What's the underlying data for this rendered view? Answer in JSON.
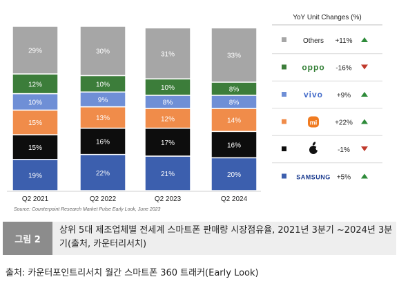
{
  "chart_data": {
    "type": "bar",
    "stacked": true,
    "percent_labels": true,
    "categories": [
      "Q2 2021",
      "Q2 2022",
      "Q2 2023",
      "Q2 2024"
    ],
    "series": [
      {
        "name": "SAMSUNG",
        "color": "#3c5fae",
        "label_color": "#ffffff",
        "values": [
          19,
          22,
          21,
          20
        ]
      },
      {
        "name": "Apple",
        "color": "#0d0d0d",
        "label_color": "#ffffff",
        "values": [
          15,
          16,
          17,
          16
        ]
      },
      {
        "name": "Xiaomi",
        "color": "#f08c4a",
        "label_color": "#ffffff",
        "values": [
          15,
          13,
          12,
          14
        ]
      },
      {
        "name": "vivo",
        "color": "#6f8fd6",
        "label_color": "#ffffff",
        "values": [
          10,
          9,
          8,
          8
        ]
      },
      {
        "name": "oppo",
        "color": "#3c7d3a",
        "label_color": "#ffffff",
        "values": [
          12,
          10,
          10,
          8
        ]
      },
      {
        "name": "Others",
        "color": "#a6a6a6",
        "label_color": "#ffffff",
        "values": [
          29,
          30,
          31,
          33
        ]
      }
    ],
    "ylim": [
      0,
      100
    ],
    "footnote": "Source: Counterpoint Research Market Pulse Early Look, June 2023",
    "legend": {
      "title": "YoY Unit Changes (%)",
      "placement": "right",
      "entries": [
        {
          "label": "Others",
          "change": "+11%",
          "direction": "up",
          "color": "#a6a6a6",
          "logo": "text"
        },
        {
          "label": "oppo",
          "change": "-16%",
          "direction": "down",
          "color": "#3c7d3a",
          "logo": "oppo-logo"
        },
        {
          "label": "vivo",
          "change": "+9%",
          "direction": "up",
          "color": "#6f8fd6",
          "logo": "vivo-logo"
        },
        {
          "label": "mi",
          "change": "+22%",
          "direction": "up",
          "color": "#f08c4a",
          "logo": "xiaomi-logo"
        },
        {
          "label": "",
          "change": "-1%",
          "direction": "down",
          "color": "#0d0d0d",
          "logo": "apple-logo"
        },
        {
          "label": "SAMSUNG",
          "change": "+5%",
          "direction": "up",
          "color": "#3c5fae",
          "logo": "samsung-logo"
        }
      ],
      "up_color": "#2e8b3a",
      "down_color": "#c0392b"
    }
  },
  "caption": {
    "tag": "그림 2",
    "text": "상위 5대 제조업체별 전세계 스마트폰 판매량 시장점유율, 2021년 3분기 ~2024년 3분기(출처, 카운터리서치)"
  },
  "source_line": "출처: 카운터포인트리서치 월간 스마트폰 360 트래커(Early Look)"
}
